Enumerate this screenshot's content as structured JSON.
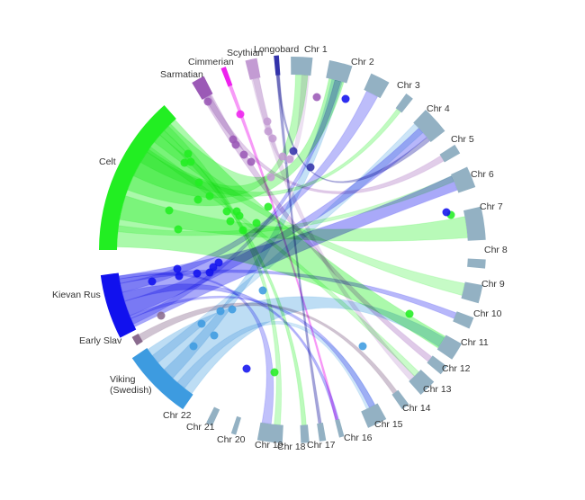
{
  "colors": {
    "chromosome": "#93b1c3",
    "Celt": "#22ee22",
    "Kievan Rus": "#1111ee",
    "Early Slav": "#8a6b8e",
    "Viking": "#3d9be0",
    "Sarmatian": "#9b59b6",
    "Cimmerian": "#ee22ee",
    "Scythian": "#c39bd3",
    "Longobard": "#3333aa",
    "background": "#ffffff"
  },
  "populations": [
    {
      "id": "Celt",
      "label": "Celt"
    },
    {
      "id": "Kievan Rus",
      "label": "Kievan Rus"
    },
    {
      "id": "Early Slav",
      "label": "Early Slav"
    },
    {
      "id": "Viking",
      "label": "Viking\n(Swedish)"
    },
    {
      "id": "Sarmatian",
      "label": "Sarmatian"
    },
    {
      "id": "Cimmerian",
      "label": "Cimmerian"
    },
    {
      "id": "Scythian",
      "label": "Scythian"
    },
    {
      "id": "Longobard",
      "label": "Longobard"
    }
  ],
  "chromosomes": [
    "Chr 1",
    "Chr 2",
    "Chr 3",
    "Chr 4",
    "Chr 5",
    "Chr 6",
    "Chr 7",
    "Chr 8",
    "Chr 9",
    "Chr 10",
    "Chr 11",
    "Chr 12",
    "Chr 13",
    "Chr 14",
    "Chr 15",
    "Chr 16",
    "Chr 17",
    "Chr 18",
    "Chr 19",
    "Chr 20",
    "Chr 21",
    "Chr 22"
  ]
}
